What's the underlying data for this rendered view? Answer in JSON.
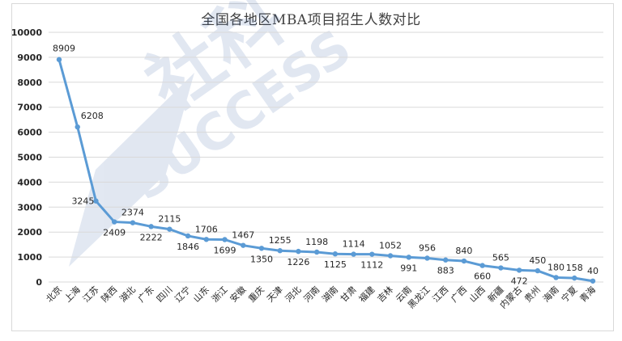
{
  "chart_data": {
    "type": "line",
    "title": "全国各地区MBA项目招生人数对比",
    "categories": [
      "北京",
      "上海",
      "江苏",
      "陕西",
      "湖北",
      "广东",
      "四川",
      "辽宁",
      "山东",
      "浙江",
      "安徽",
      "重庆",
      "天津",
      "河北",
      "河南",
      "湖南",
      "甘肃",
      "福建",
      "吉林",
      "云南",
      "黑龙江",
      "江西",
      "广西",
      "山西",
      "新疆",
      "内蒙古",
      "贵州",
      "海南",
      "宁夏",
      "青海"
    ],
    "values": [
      8909,
      6208,
      3245,
      2409,
      2374,
      2222,
      2115,
      1846,
      1706,
      1699,
      1467,
      1350,
      1255,
      1226,
      1198,
      1125,
      1114,
      1112,
      1052,
      991,
      956,
      883,
      840,
      660,
      565,
      472,
      450,
      180,
      158,
      40
    ],
    "ylim": [
      0,
      10000
    ],
    "yticks": [
      0,
      1000,
      2000,
      3000,
      4000,
      5000,
      6000,
      7000,
      8000,
      9000,
      10000
    ],
    "grid": true,
    "legend": "none",
    "line_color": "#5b9bd5",
    "grid_color": "#d9d9d9"
  }
}
